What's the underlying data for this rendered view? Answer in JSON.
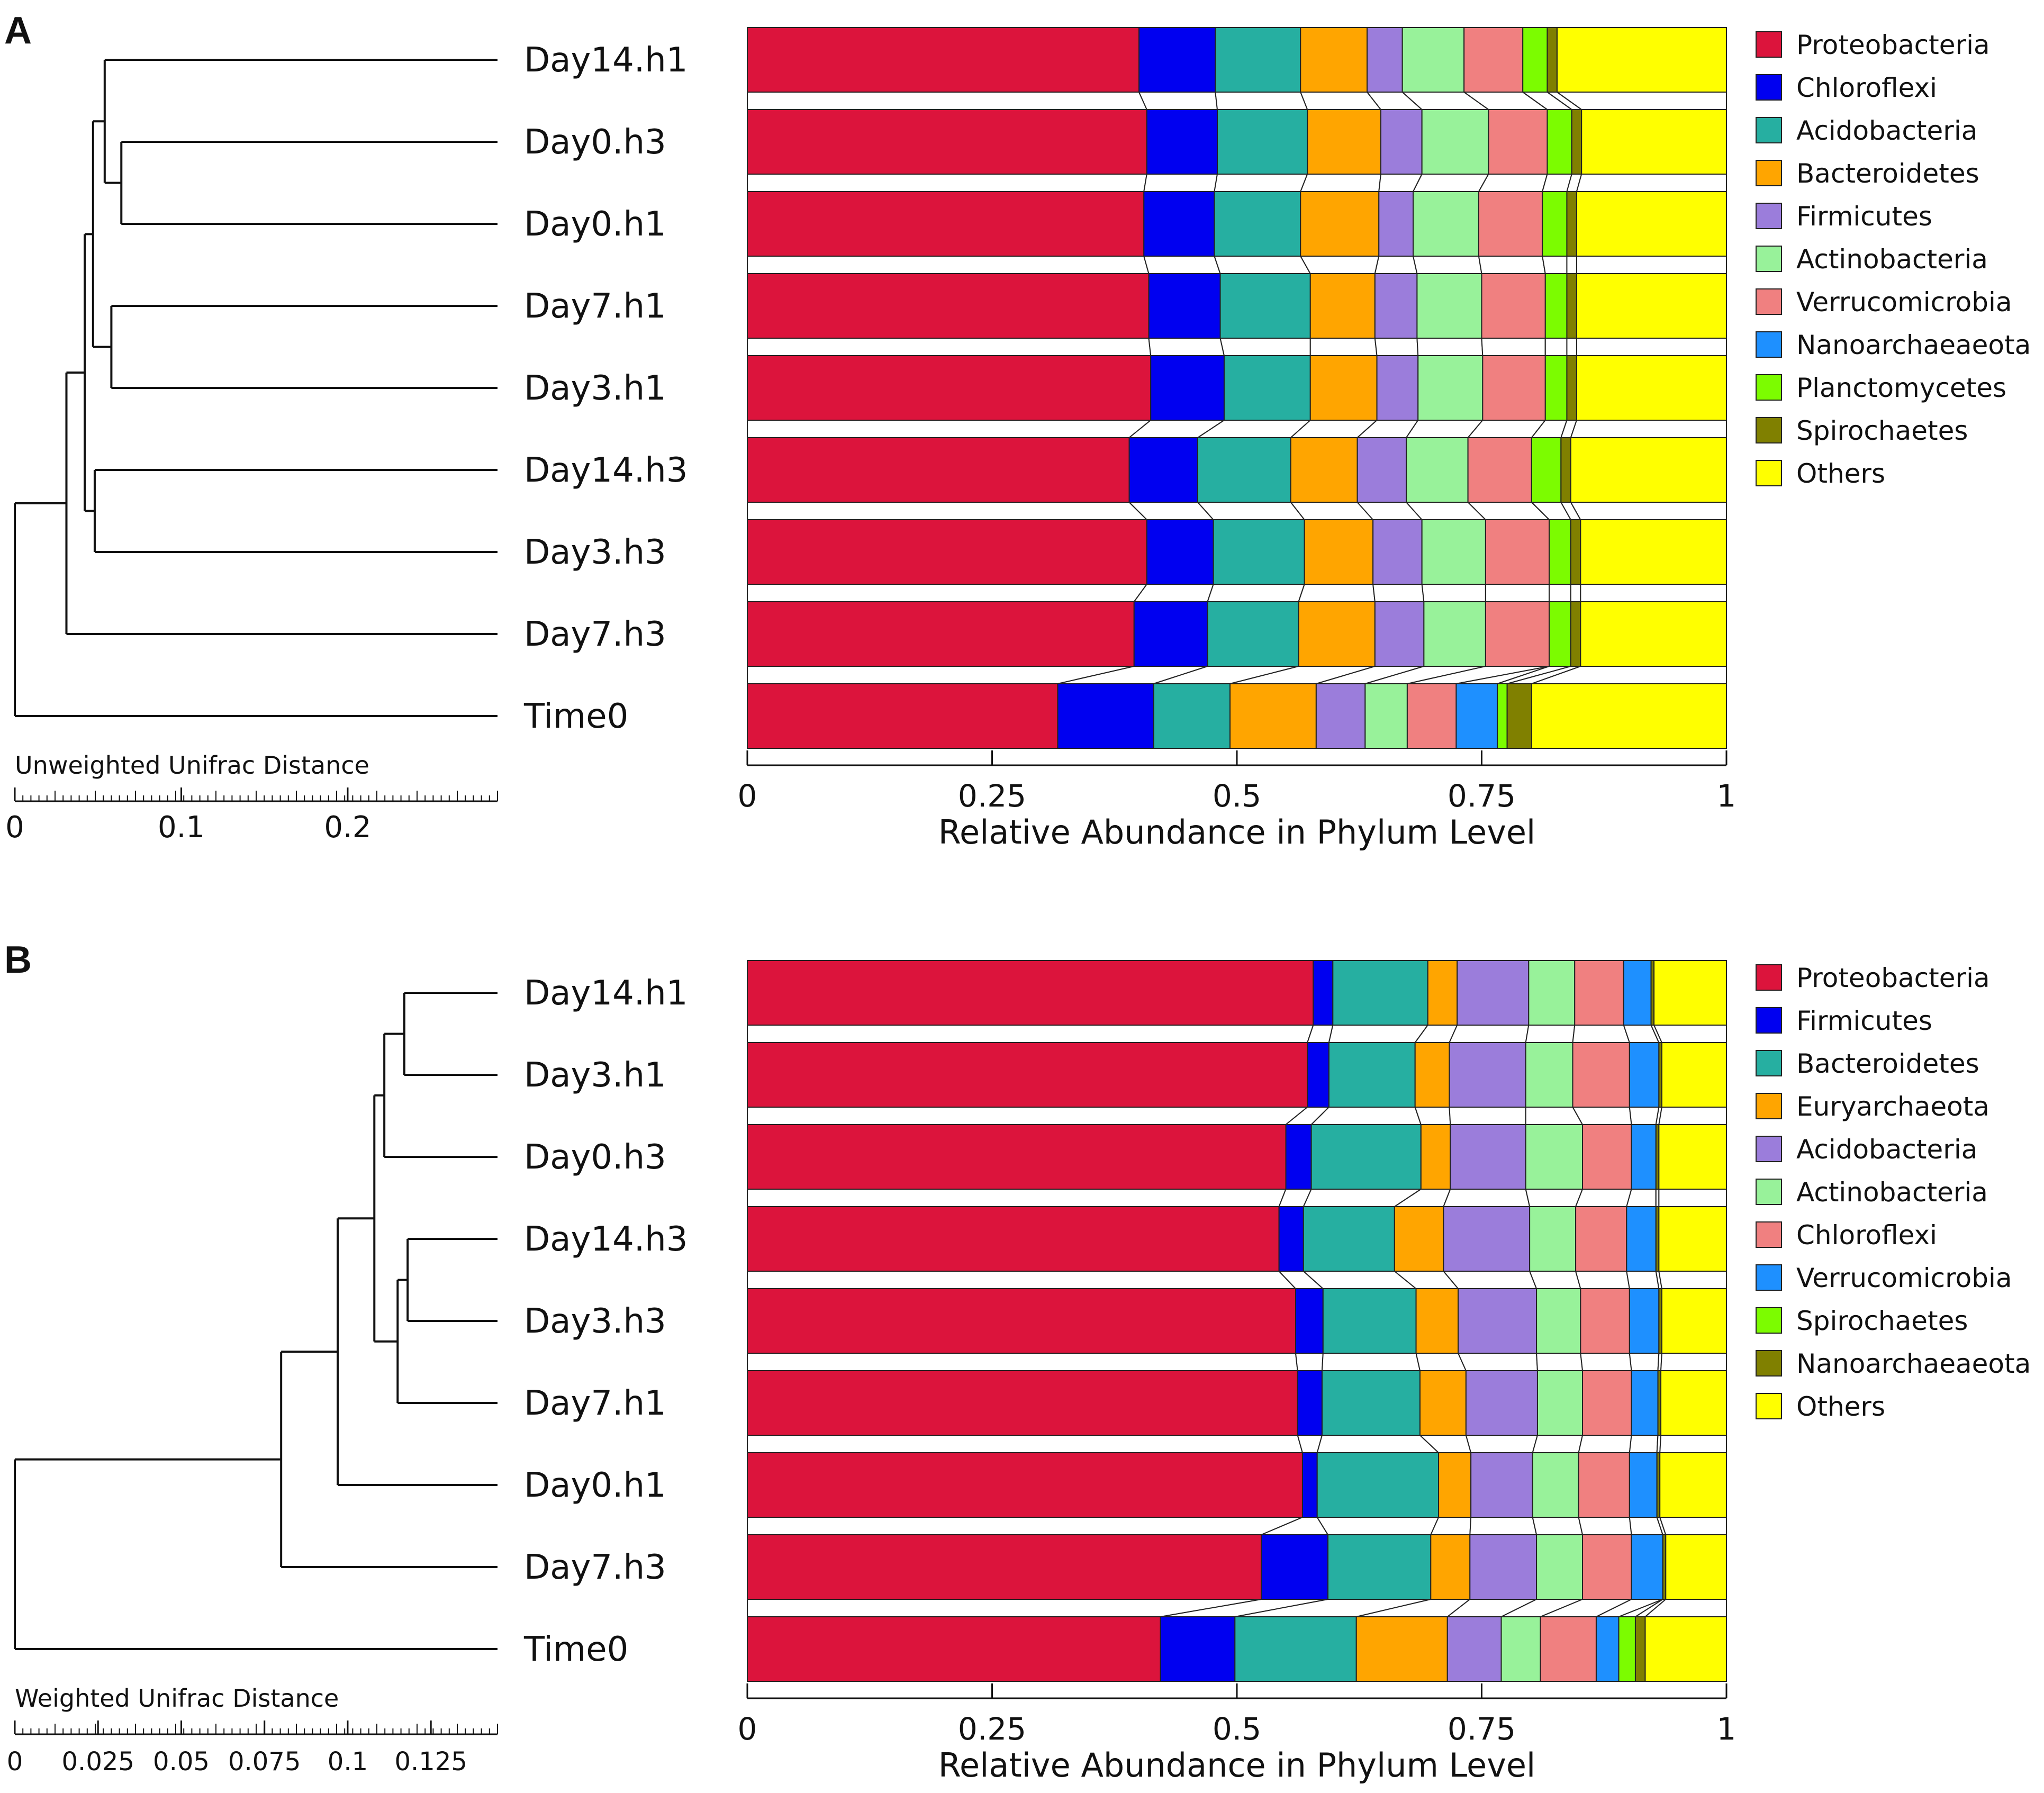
{
  "colors": {
    "Proteobacteria": "#DC143C",
    "Chloroflexi_A": "#0000F0",
    "Acidobacteria_A": "#26AFA1",
    "Bacteroidetes_A": "#FFA500",
    "Firmicutes_A": "#9B7DDB",
    "Actinobacteria": "#98F29A",
    "Verrucomicrobia_A": "#F08080",
    "Nanoarchaeaeota_A": "#1E90FF",
    "Planctomycetes": "#7CFC00",
    "Spirochaetes_A": "#808000",
    "Others": "#FFFF00",
    "Firmicutes_B": "#0000F0",
    "Bacteroidetes_B": "#26AFA1",
    "Euryarchaeota": "#FFA500",
    "Acidobacteria_B": "#9B7DDB",
    "Chloroflexi_B": "#F08080",
    "Verrucomicrobia_B": "#1E90FF",
    "Spirochaetes_B": "#7CFC00",
    "Nanoarchaeaeota_B": "#808000"
  },
  "chart_data": [
    {
      "panel": "A",
      "type": "bar",
      "orientation": "horizontal-stacked",
      "xlabel": "Relative Abundance in Phylum Level",
      "xlim": [
        0,
        1
      ],
      "xticks": [
        "0",
        "0.25",
        "0.5",
        "0.75",
        "1"
      ],
      "tree_label": "Unweighted Unifrac Distance",
      "tree_ticks": [
        "0",
        "0.1",
        "0.2"
      ],
      "tree_scale_max": 0.29,
      "categories": [
        "Day14.h1",
        "Day0.h3",
        "Day0.h1",
        "Day7.h1",
        "Day3.h1",
        "Day14.h3",
        "Day3.h3",
        "Day7.h3",
        "Time0"
      ],
      "tree": {
        "n": "",
        "h": 0,
        "c": [
          {
            "n": "",
            "h": 0.031,
            "c": [
              {
                "n": "",
                "h": 0.042,
                "c": [
                  {
                    "n": "",
                    "h": 0.047,
                    "c": [
                      {
                        "n": "",
                        "h": 0.054,
                        "c": [
                          {
                            "n": "Day14.h1"
                          },
                          {
                            "n": "",
                            "h": 0.064,
                            "c": [
                              {
                                "n": "Day0.h3"
                              },
                              {
                                "n": "Day0.h1"
                              }
                            ]
                          }
                        ]
                      },
                      {
                        "n": "",
                        "h": 0.058,
                        "c": [
                          {
                            "n": "Day7.h1"
                          },
                          {
                            "n": "Day3.h1"
                          }
                        ]
                      }
                    ]
                  },
                  {
                    "n": "",
                    "h": 0.048,
                    "c": [
                      {
                        "n": "Day14.h3"
                      },
                      {
                        "n": "Day3.h3"
                      }
                    ]
                  }
                ]
              },
              {
                "n": "Day7.h3"
              }
            ]
          },
          {
            "n": "Time0"
          }
        ]
      },
      "series": [
        {
          "name": "Proteobacteria",
          "color_key": "Proteobacteria",
          "values": [
            0.4,
            0.408,
            0.405,
            0.41,
            0.412,
            0.39,
            0.408,
            0.395,
            0.317
          ]
        },
        {
          "name": "Chloroflexi",
          "color_key": "Chloroflexi_A",
          "values": [
            0.078,
            0.072,
            0.072,
            0.073,
            0.075,
            0.07,
            0.068,
            0.075,
            0.098
          ]
        },
        {
          "name": "Acidobacteria",
          "color_key": "Acidobacteria_A",
          "values": [
            0.087,
            0.092,
            0.088,
            0.092,
            0.088,
            0.095,
            0.093,
            0.093,
            0.078
          ]
        },
        {
          "name": "Bacteroidetes",
          "color_key": "Bacteroidetes_A",
          "values": [
            0.068,
            0.075,
            0.08,
            0.066,
            0.068,
            0.068,
            0.07,
            0.078,
            0.088
          ]
        },
        {
          "name": "Firmicutes",
          "color_key": "Firmicutes_A",
          "values": [
            0.036,
            0.042,
            0.035,
            0.043,
            0.042,
            0.05,
            0.05,
            0.05,
            0.05
          ]
        },
        {
          "name": "Actinobacteria",
          "color_key": "Actinobacteria",
          "values": [
            0.063,
            0.068,
            0.067,
            0.066,
            0.066,
            0.063,
            0.065,
            0.063,
            0.043
          ]
        },
        {
          "name": "Verrucomicrobia",
          "color_key": "Verrucomicrobia_A",
          "values": [
            0.06,
            0.06,
            0.065,
            0.065,
            0.064,
            0.065,
            0.065,
            0.065,
            0.05
          ]
        },
        {
          "name": "Nanoarchaeaeota",
          "color_key": "Nanoarchaeaeota_A",
          "values": [
            0.0,
            0.0,
            0.0,
            0.0,
            0.0,
            0.0,
            0.0,
            0.0,
            0.042
          ]
        },
        {
          "name": "Planctomycetes",
          "color_key": "Planctomycetes",
          "values": [
            0.025,
            0.025,
            0.025,
            0.022,
            0.022,
            0.03,
            0.022,
            0.022,
            0.01
          ]
        },
        {
          "name": "Spirochaetes",
          "color_key": "Spirochaetes_A",
          "values": [
            0.01,
            0.01,
            0.01,
            0.01,
            0.01,
            0.01,
            0.01,
            0.01,
            0.025
          ]
        },
        {
          "name": "Others",
          "color_key": "Others",
          "values": [
            0.173,
            0.148,
            0.153,
            0.153,
            0.153,
            0.159,
            0.149,
            0.149,
            0.199
          ]
        }
      ]
    },
    {
      "panel": "B",
      "type": "bar",
      "orientation": "horizontal-stacked",
      "xlabel": "Relative Abundance in Phylum Level",
      "xlim": [
        0,
        1
      ],
      "xticks": [
        "0",
        "0.25",
        "0.5",
        "0.75",
        "1"
      ],
      "tree_label": "Weighted Unifrac Distance",
      "tree_ticks": [
        "0",
        "0.025",
        "0.05",
        "0.075",
        "0.1",
        "0.125"
      ],
      "tree_scale_max": 0.145,
      "categories": [
        "Day14.h1",
        "Day3.h1",
        "Day0.h3",
        "Day14.h3",
        "Day3.h3",
        "Day7.h1",
        "Day0.h1",
        "Day7.h3",
        "Time0"
      ],
      "tree": {
        "n": "",
        "h": 0,
        "c": [
          {
            "n": "",
            "h": 0.08,
            "c": [
              {
                "n": "",
                "h": 0.097,
                "c": [
                  {
                    "n": "",
                    "h": 0.108,
                    "c": [
                      {
                        "n": "",
                        "h": 0.111,
                        "c": [
                          {
                            "n": "",
                            "h": 0.117,
                            "c": [
                              {
                                "n": "Day14.h1"
                              },
                              {
                                "n": "Day3.h1"
                              }
                            ]
                          },
                          {
                            "n": "Day0.h3"
                          }
                        ]
                      },
                      {
                        "n": "",
                        "h": 0.115,
                        "c": [
                          {
                            "n": "",
                            "h": 0.118,
                            "c": [
                              {
                                "n": "Day14.h3"
                              },
                              {
                                "n": "Day3.h3"
                              }
                            ]
                          },
                          {
                            "n": "Day7.h1"
                          }
                        ]
                      }
                    ]
                  },
                  {
                    "n": "Day0.h1"
                  }
                ]
              },
              {
                "n": "Day7.h3"
              }
            ]
          },
          {
            "n": "Time0"
          }
        ]
      },
      "series": [
        {
          "name": "Proteobacteria",
          "color_key": "Proteobacteria",
          "values": [
            0.578,
            0.572,
            0.55,
            0.543,
            0.56,
            0.562,
            0.567,
            0.525,
            0.422
          ]
        },
        {
          "name": "Firmicutes",
          "color_key": "Firmicutes_B",
          "values": [
            0.02,
            0.022,
            0.026,
            0.025,
            0.028,
            0.025,
            0.015,
            0.068,
            0.076
          ]
        },
        {
          "name": "Bacteroidetes",
          "color_key": "Bacteroidetes_B",
          "values": [
            0.097,
            0.088,
            0.112,
            0.093,
            0.095,
            0.1,
            0.124,
            0.105,
            0.124
          ]
        },
        {
          "name": "Euryarchaeota",
          "color_key": "Euryarchaeota",
          "values": [
            0.03,
            0.035,
            0.03,
            0.05,
            0.043,
            0.047,
            0.033,
            0.04,
            0.093
          ]
        },
        {
          "name": "Acidobacteria",
          "color_key": "Acidobacteria_B",
          "values": [
            0.073,
            0.078,
            0.077,
            0.088,
            0.08,
            0.073,
            0.063,
            0.068,
            0.055
          ]
        },
        {
          "name": "Actinobacteria",
          "color_key": "Actinobacteria",
          "values": [
            0.047,
            0.048,
            0.058,
            0.047,
            0.045,
            0.046,
            0.047,
            0.047,
            0.04
          ]
        },
        {
          "name": "Chloroflexi",
          "color_key": "Chloroflexi_B",
          "values": [
            0.05,
            0.058,
            0.05,
            0.052,
            0.05,
            0.05,
            0.052,
            0.05,
            0.057
          ]
        },
        {
          "name": "Verrucomicrobia",
          "color_key": "Verrucomicrobia_B",
          "values": [
            0.028,
            0.03,
            0.025,
            0.03,
            0.03,
            0.027,
            0.028,
            0.032,
            0.023
          ]
        },
        {
          "name": "Spirochaetes",
          "color_key": "Spirochaetes_B",
          "values": [
            0.0,
            0.0,
            0.0,
            0.0,
            0.0,
            0.0,
            0.0,
            0.0,
            0.017
          ]
        },
        {
          "name": "Nanoarchaeaeota",
          "color_key": "Nanoarchaeaeota_B",
          "values": [
            0.003,
            0.003,
            0.003,
            0.003,
            0.003,
            0.003,
            0.003,
            0.003,
            0.01
          ]
        },
        {
          "name": "Others",
          "color_key": "Others",
          "values": [
            0.074,
            0.066,
            0.069,
            0.069,
            0.066,
            0.067,
            0.068,
            0.062,
            0.083
          ]
        }
      ]
    }
  ],
  "panel_a_letter": "A",
  "panel_b_letter": "B"
}
